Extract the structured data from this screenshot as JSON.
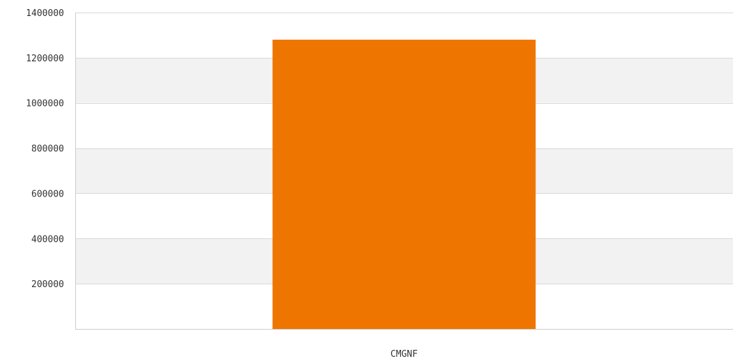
{
  "chart_data": {
    "type": "bar",
    "categories": [
      "CMGNF"
    ],
    "values": [
      1280000
    ],
    "title": "",
    "xlabel": "",
    "ylabel": "",
    "ylim": [
      0,
      1400000
    ],
    "yticks": [
      200000,
      400000,
      600000,
      800000,
      1000000,
      1200000,
      1400000
    ],
    "grid": true,
    "colors": {
      "bar": "#EE7600",
      "band": "#F2F2F2",
      "gridline": "#D9D9D9",
      "axis": "#CCCCCC"
    }
  }
}
